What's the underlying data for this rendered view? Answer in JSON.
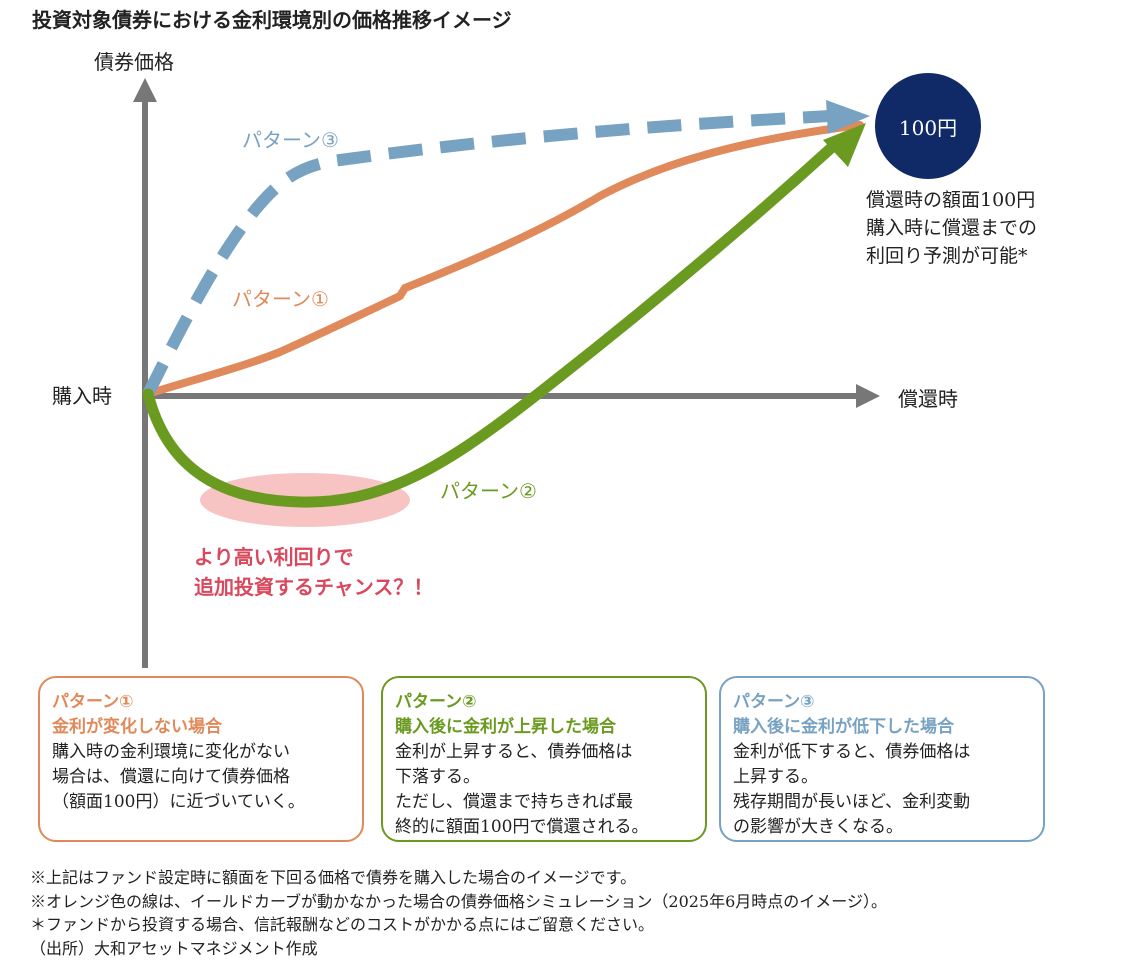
{
  "title": "投資対象債券における金利環境別の価格推移イメージ",
  "axes": {
    "y_label": "債券価格",
    "x_label": "償還時",
    "origin_label": "購入時"
  },
  "colors": {
    "pattern1": "#e0895a",
    "pattern2": "#6a9a1f",
    "pattern3": "#78a2c2",
    "axis": "#777777",
    "coin": "#0f2a66",
    "highlight": "#f6b8b8",
    "chance_text": "#d9485d"
  },
  "patterns": [
    {
      "id": "pattern1",
      "label": "パターン①",
      "style": "solid"
    },
    {
      "id": "pattern2",
      "label": "パターン②",
      "style": "solid-arrow"
    },
    {
      "id": "pattern3",
      "label": "パターン③",
      "style": "dashed-arrow"
    }
  ],
  "coin": {
    "label": "100円"
  },
  "redemption_note": [
    "償還時の額面100円",
    "購入時に償還までの",
    "利回り予測が可能*"
  ],
  "chance_note": [
    "より高い利回りで",
    "追加投資するチャンス？！"
  ],
  "boxes": [
    {
      "title1": "パターン①",
      "title2": "金利が変化しない場合",
      "body": [
        "購入時の金利環境に変化がない",
        "場合は、償還に向けて債券価格",
        "（額面100円）に近づいていく。"
      ]
    },
    {
      "title1": "パターン②",
      "title2": "購入後に金利が上昇した場合",
      "body": [
        "金利が上昇すると、債券価格は",
        "下落する。",
        "ただし、償還まで持ちきれば最",
        "終的に額面100円で償還される。"
      ]
    },
    {
      "title1": "パターン③",
      "title2": "購入後に金利が低下した場合",
      "body": [
        "金利が低下すると、債券価格は",
        "上昇する。",
        "残存期間が長いほど、金利変動",
        "の影響が大きくなる。"
      ]
    }
  ],
  "footnotes": [
    "※上記はファンド設定時に額面を下回る価格で債券を購入した場合のイメージです。",
    "※オレンジ色の線は、イールドカーブが動かなかった場合の債券価格シミュレーション（2025年6月時点のイメージ）。",
    "＊ファンドから投資する場合、信託報酬などのコストがかかる点にはご留意ください。",
    "（出所）大和アセットマネジメント作成"
  ]
}
